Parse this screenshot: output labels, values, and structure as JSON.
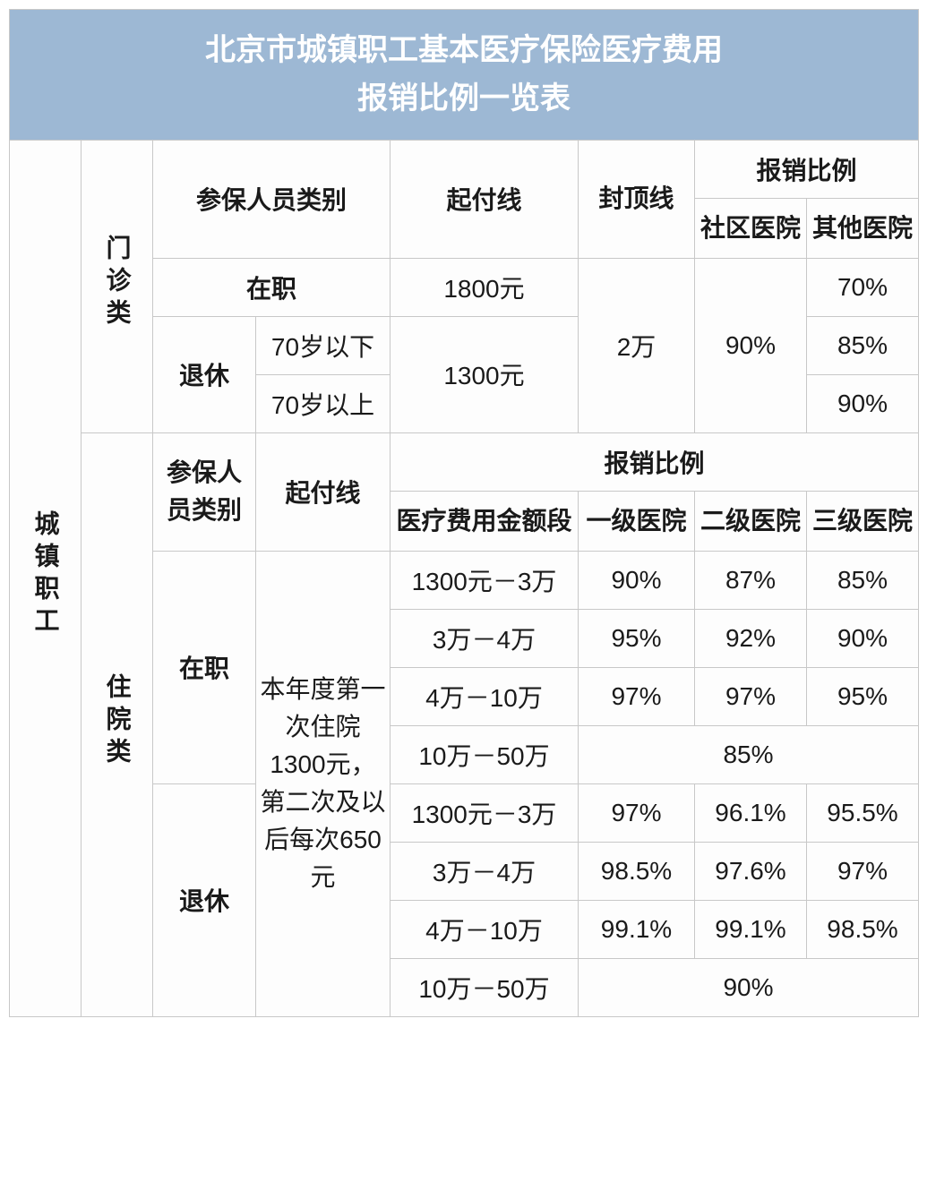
{
  "title_line1": "北京市城镇职工基本医疗保险医疗费用",
  "title_line2": "报销比例一览表",
  "sidebar_label": "城镇职工",
  "outpatient": {
    "category_label": "门诊类",
    "header_participant": "参保人员类别",
    "header_deductible": "起付线",
    "header_cap": "封顶线",
    "header_ratio": "报销比例",
    "header_community": "社区医院",
    "header_other": "其他医院",
    "row_active": {
      "label": "在职",
      "deductible": "1800元",
      "other_pct": "70%"
    },
    "retired_label": "退休",
    "row_retired_under70": {
      "age": "70岁以下",
      "other_pct": "85%"
    },
    "row_retired_over70": {
      "age": "70岁以上",
      "other_pct": "90%"
    },
    "retired_deductible": "1300元",
    "cap": "2万",
    "community_pct": "90%"
  },
  "inpatient": {
    "category_label": "住院类",
    "header_participant": "参保人员类别",
    "header_deductible": "起付线",
    "header_ratio": "报销比例",
    "header_range": "医疗费用金额段",
    "header_l1": "一级医院",
    "header_l2": "二级医院",
    "header_l3": "三级医院",
    "active_label": "在职",
    "retired_label": "退休",
    "deductible_text": "本年度第一次住院1300元，第二次及以后每次650元",
    "active_rows": [
      {
        "range": "1300元－3万",
        "l1": "90%",
        "l2": "87%",
        "l3": "85%"
      },
      {
        "range": "3万－4万",
        "l1": "95%",
        "l2": "92%",
        "l3": "90%"
      },
      {
        "range": "4万－10万",
        "l1": "97%",
        "l2": "97%",
        "l3": "95%"
      },
      {
        "range": "10万－50万",
        "merged": "85%"
      }
    ],
    "retired_rows": [
      {
        "range": "1300元－3万",
        "l1": "97%",
        "l2": "96.1%",
        "l3": "95.5%"
      },
      {
        "range": "3万－4万",
        "l1": "98.5%",
        "l2": "97.6%",
        "l3": "97%"
      },
      {
        "range": "4万－10万",
        "l1": "99.1%",
        "l2": "99.1%",
        "l3": "98.5%"
      },
      {
        "range": "10万－50万",
        "merged": "90%"
      }
    ]
  },
  "styles": {
    "title_bg": "#9db8d4",
    "title_color": "#ffffff",
    "border_color": "#c8c8c8",
    "cell_bg": "#fdfdfd",
    "title_fontsize": 34,
    "cell_fontsize": 28
  }
}
